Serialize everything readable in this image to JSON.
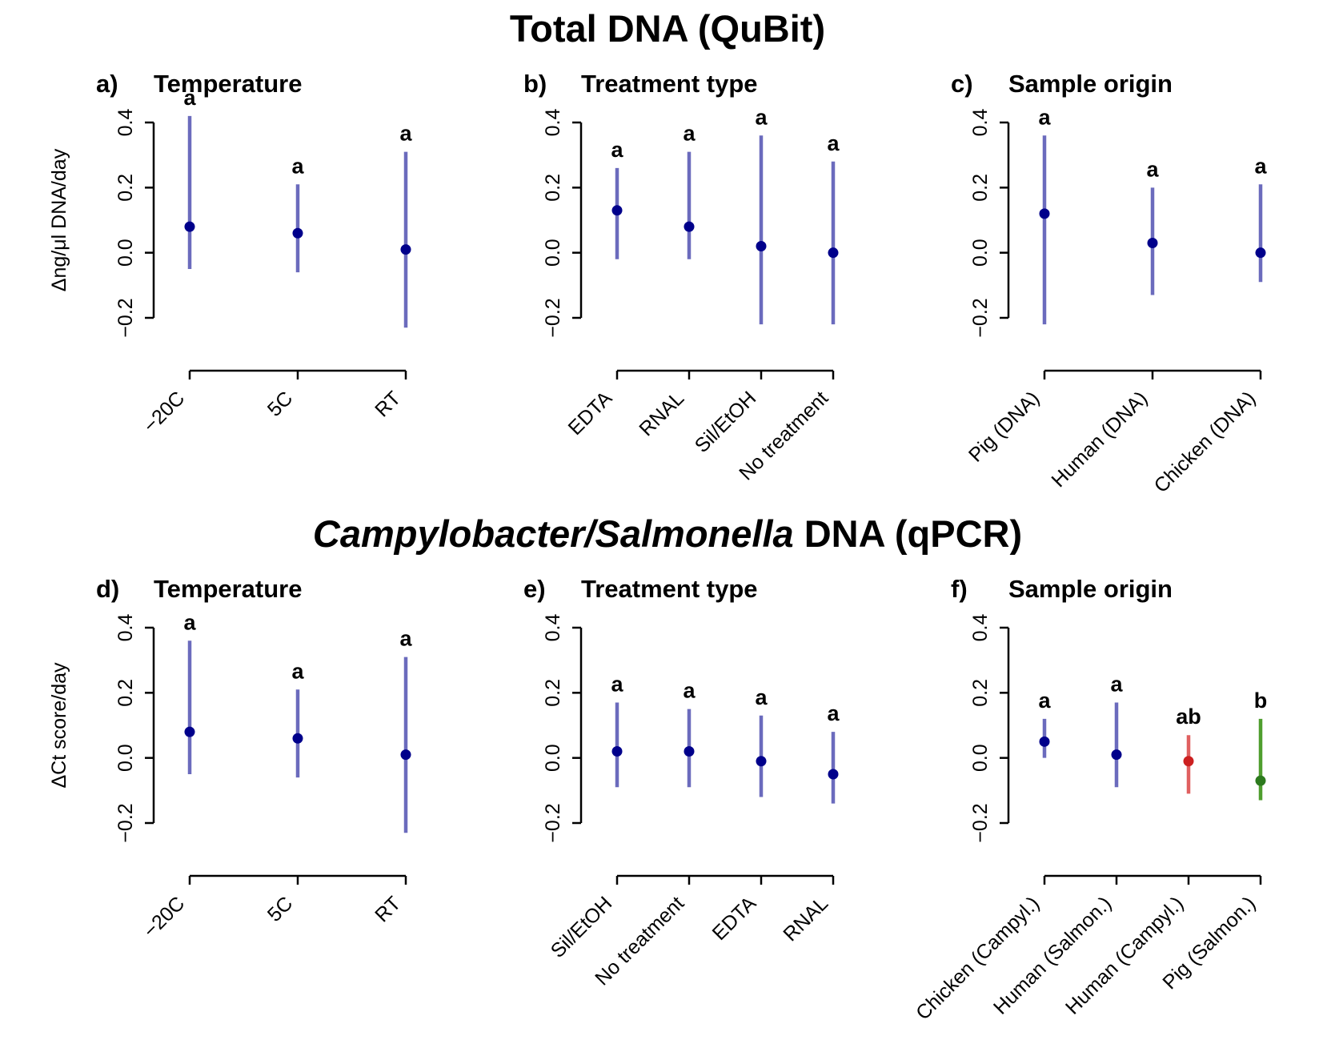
{
  "titles": [
    {
      "italic": "",
      "plain": "Total DNA (QuBit)"
    },
    {
      "italic": "Campylobacter/Salmonella",
      "plain": " DNA (qPCR)"
    }
  ],
  "colors": {
    "axis": "#000000",
    "point_blue": "#00008b",
    "bar_blue": "#6b6bbd",
    "letter_blue": "#3333cc",
    "point_red": "#cc2020",
    "bar_red": "#e06060",
    "letter_red": "#ee3030",
    "point_green": "#2d7a1e",
    "bar_green": "#4f9e2e",
    "letter_green": "#6fae20"
  },
  "chart_data": [
    {
      "id": "a",
      "row": 0,
      "label": "a)",
      "header": "Temperature",
      "type": "scatter",
      "ylabel": "Δng/μl DNA/day",
      "ylim": [
        -0.2,
        0.4
      ],
      "yticks": [
        -0.2,
        0.0,
        0.2,
        0.4
      ],
      "points": [
        {
          "cat": "−20C",
          "y": 0.08,
          "lo": -0.05,
          "hi": 0.42,
          "letter": "a",
          "color": "blue"
        },
        {
          "cat": "5C",
          "y": 0.06,
          "lo": -0.06,
          "hi": 0.21,
          "letter": "a",
          "color": "blue"
        },
        {
          "cat": "RT",
          "y": 0.01,
          "lo": -0.23,
          "hi": 0.31,
          "letter": "a",
          "color": "blue"
        }
      ]
    },
    {
      "id": "b",
      "row": 0,
      "label": "b)",
      "header": "Treatment type",
      "type": "scatter",
      "ylabel": "",
      "ylim": [
        -0.2,
        0.4
      ],
      "yticks": [
        -0.2,
        0.0,
        0.2,
        0.4
      ],
      "points": [
        {
          "cat": "EDTA",
          "y": 0.13,
          "lo": -0.02,
          "hi": 0.26,
          "letter": "a",
          "color": "blue"
        },
        {
          "cat": "RNAL",
          "y": 0.08,
          "lo": -0.02,
          "hi": 0.31,
          "letter": "a",
          "color": "blue"
        },
        {
          "cat": "Sil/EtOH",
          "y": 0.02,
          "lo": -0.22,
          "hi": 0.36,
          "letter": "a",
          "color": "blue"
        },
        {
          "cat": "No treatment",
          "y": 0.0,
          "lo": -0.22,
          "hi": 0.28,
          "letter": "a",
          "color": "blue"
        }
      ]
    },
    {
      "id": "c",
      "row": 0,
      "label": "c)",
      "header": "Sample origin",
      "type": "scatter",
      "ylabel": "",
      "ylim": [
        -0.2,
        0.4
      ],
      "yticks": [
        -0.2,
        0.0,
        0.2,
        0.4
      ],
      "points": [
        {
          "cat": "Pig (DNA)",
          "y": 0.12,
          "lo": -0.22,
          "hi": 0.36,
          "letter": "a",
          "color": "blue"
        },
        {
          "cat": "Human (DNA)",
          "y": 0.03,
          "lo": -0.13,
          "hi": 0.2,
          "letter": "a",
          "color": "blue"
        },
        {
          "cat": "Chicken (DNA)",
          "y": 0.0,
          "lo": -0.09,
          "hi": 0.21,
          "letter": "a",
          "color": "blue"
        }
      ]
    },
    {
      "id": "d",
      "row": 1,
      "label": "d)",
      "header": "Temperature",
      "type": "scatter",
      "ylabel": "ΔCt score/day",
      "ylim": [
        -0.2,
        0.4
      ],
      "yticks": [
        -0.2,
        0.0,
        0.2,
        0.4
      ],
      "points": [
        {
          "cat": "−20C",
          "y": 0.08,
          "lo": -0.05,
          "hi": 0.36,
          "letter": "a",
          "color": "blue"
        },
        {
          "cat": "5C",
          "y": 0.06,
          "lo": -0.06,
          "hi": 0.21,
          "letter": "a",
          "color": "blue"
        },
        {
          "cat": "RT",
          "y": 0.01,
          "lo": -0.23,
          "hi": 0.31,
          "letter": "a",
          "color": "blue"
        }
      ]
    },
    {
      "id": "e",
      "row": 1,
      "label": "e)",
      "header": "Treatment type",
      "type": "scatter",
      "ylabel": "",
      "ylim": [
        -0.2,
        0.4
      ],
      "yticks": [
        -0.2,
        0.0,
        0.2,
        0.4
      ],
      "points": [
        {
          "cat": "Sil/EtOH",
          "y": 0.02,
          "lo": -0.09,
          "hi": 0.17,
          "letter": "a",
          "color": "blue"
        },
        {
          "cat": "No treatment",
          "y": 0.02,
          "lo": -0.09,
          "hi": 0.15,
          "letter": "a",
          "color": "blue"
        },
        {
          "cat": "EDTA",
          "y": -0.01,
          "lo": -0.12,
          "hi": 0.13,
          "letter": "a",
          "color": "blue"
        },
        {
          "cat": "RNAL",
          "y": -0.05,
          "lo": -0.14,
          "hi": 0.08,
          "letter": "a",
          "color": "blue"
        }
      ]
    },
    {
      "id": "f",
      "row": 1,
      "label": "f)",
      "header": "Sample origin",
      "type": "scatter",
      "ylabel": "",
      "ylim": [
        -0.2,
        0.4
      ],
      "yticks": [
        -0.2,
        0.0,
        0.2,
        0.4
      ],
      "points": [
        {
          "cat": "Chicken (Campyl.)",
          "y": 0.05,
          "lo": 0.0,
          "hi": 0.12,
          "letter": "a",
          "color": "blue"
        },
        {
          "cat": "Human (Salmon.)",
          "y": 0.01,
          "lo": -0.09,
          "hi": 0.17,
          "letter": "a",
          "color": "blue"
        },
        {
          "cat": "Human (Campyl.)",
          "y": -0.01,
          "lo": -0.11,
          "hi": 0.07,
          "letter": "ab",
          "color": "red"
        },
        {
          "cat": "Pig (Salmon.)",
          "y": -0.07,
          "lo": -0.13,
          "hi": 0.12,
          "letter": "b",
          "color": "green"
        }
      ]
    }
  ]
}
